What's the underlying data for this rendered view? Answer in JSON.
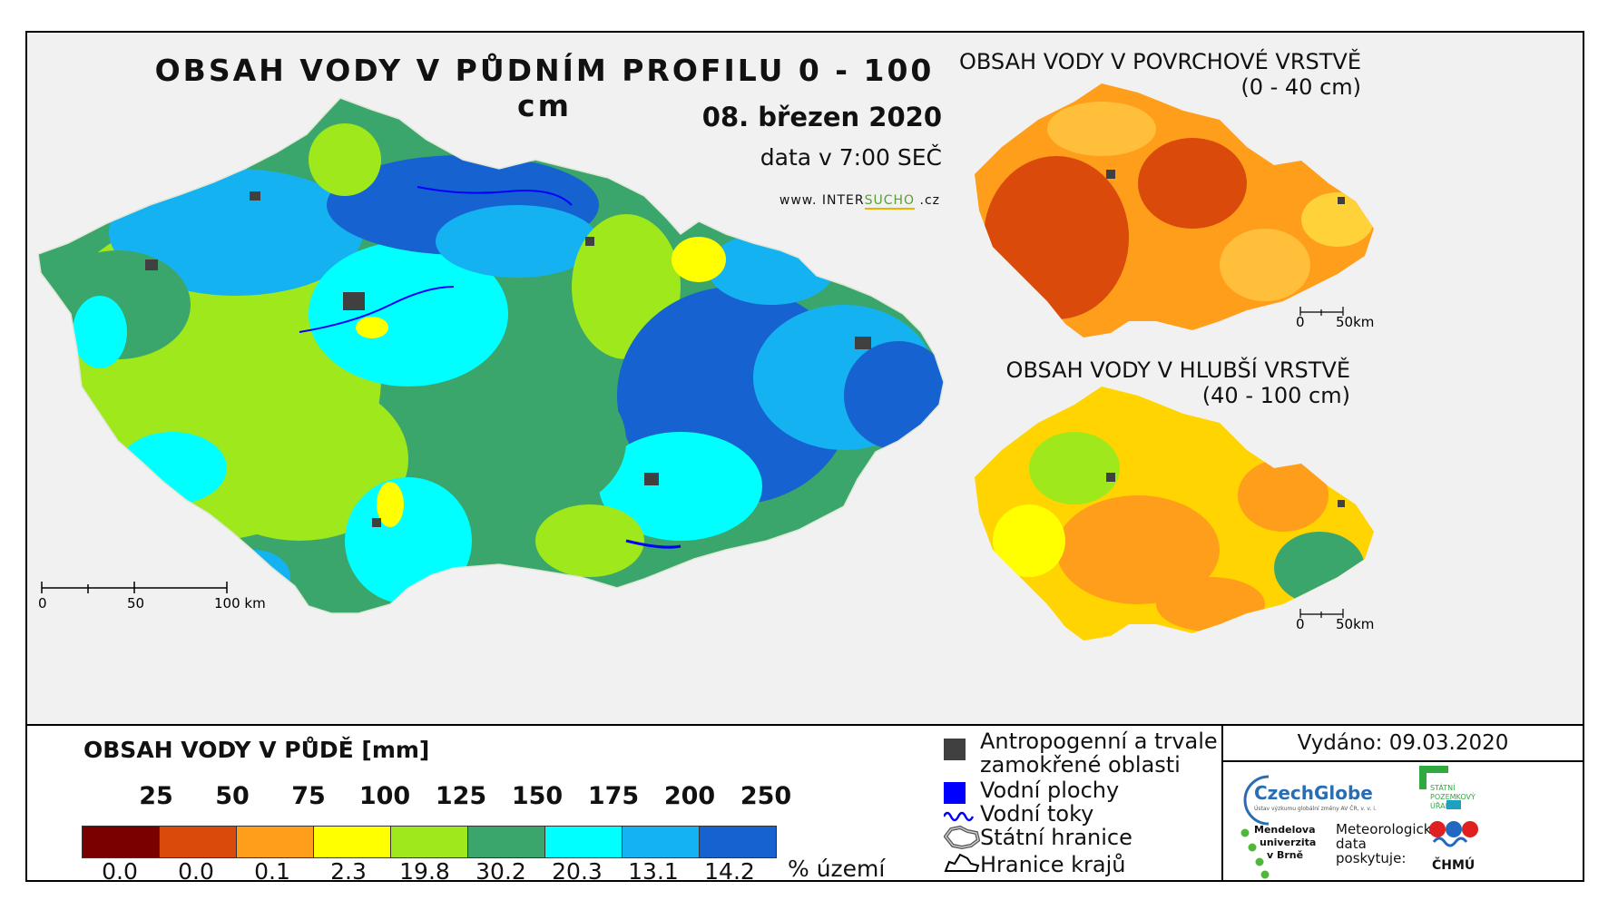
{
  "title": "OBSAH VODY V PŮDNÍM PROFILU 0 - 100 cm",
  "date": "08. březen 2020",
  "time_note": "data v 7:00 SEČ",
  "website": {
    "prefix": "www. INTER",
    "green": "SUCHO",
    "suffix": " .cz"
  },
  "main_scale": {
    "labels": [
      "0",
      "50",
      "100 km"
    ]
  },
  "inset_surface": {
    "title_line1": "OBSAH VODY V POVRCHOVÉ VRSTVĚ",
    "title_line2": "(0 - 40 cm)",
    "scale_labels": [
      "0",
      "50km"
    ]
  },
  "inset_deep": {
    "title_line1": "OBSAH VODY V HLUBŠÍ VRSTVĚ",
    "title_line2": "(40 - 100 cm)",
    "scale_labels": [
      "0",
      "50km"
    ]
  },
  "legend": {
    "title": "OBSAH VODY V PŮDĚ [mm]",
    "thresholds": [
      "25",
      "50",
      "75",
      "100",
      "125",
      "150",
      "175",
      "200",
      "250"
    ],
    "colors": [
      "#7a0000",
      "#d94a0b",
      "#ff9e1a",
      "#ffff00",
      "#9ee81c",
      "#3aa66b",
      "#00ffff",
      "#15b2f2",
      "#1662d0"
    ],
    "percentages": [
      "0.0",
      "0.0",
      "0.1",
      "2.3",
      "19.8",
      "30.2",
      "20.3",
      "13.1",
      "14.2"
    ],
    "percent_unit": "% území"
  },
  "map_legend": {
    "anthropogenic_line1": "Antropogenní a trvale",
    "anthropogenic_line2": "zamokřené oblasti",
    "water_bodies": "Vodní plochy",
    "water_streams": "Vodní toky",
    "state_border": "Státní hranice",
    "region_border": "Hranice krajů",
    "anthropogenic_color": "#404040",
    "water_color": "#0000ff"
  },
  "issued": "Vydáno: 09.03.2020",
  "logos": {
    "czechglobe": "CzechGlobe",
    "czechglobe_sub": "Ústav výzkumu globální změny AV ČR, v. v. i.",
    "spu_line1": "STÁTNÍ",
    "spu_line2": "POZEMKOVÝ",
    "spu_line3": "ÚŘAD",
    "mendel_line1": "Mendelova",
    "mendel_line2": "univerzita",
    "mendel_line3": "v Brně",
    "meteo_line1": "Meteorologická",
    "meteo_line2": "data",
    "meteo_line3": "poskytuje:",
    "chmu": "ČHMÚ"
  }
}
